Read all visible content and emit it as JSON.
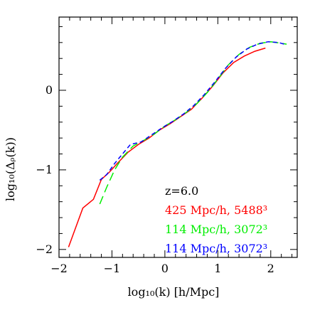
{
  "chart_data": {
    "type": "line",
    "xlabel": "log₁₀(k) [h/Mpc]",
    "ylabel": "log₁₀(Δᵨ(k))",
    "xlim": [
      -2,
      2.5
    ],
    "ylim": [
      -2.1,
      0.92
    ],
    "x_ticks": [
      -2,
      -1,
      0,
      1,
      2
    ],
    "x_tick_labels": [
      "−2",
      "−1",
      "0",
      "1",
      "2"
    ],
    "y_ticks": [
      -2,
      -1,
      0
    ],
    "y_tick_labels": [
      "−2",
      "−1",
      "0"
    ],
    "x_minor_step": 0.2,
    "y_minor_step": 0.2,
    "grid": false,
    "legend_position": "bottom-right",
    "annotation": "z=6.0",
    "series": [
      {
        "name": "425 Mpc/h, 5488³",
        "color": "#ff0000",
        "dash": "solid",
        "points": [
          [
            -1.82,
            -1.97
          ],
          [
            -1.55,
            -1.48
          ],
          [
            -1.35,
            -1.37
          ],
          [
            -1.2,
            -1.12
          ],
          [
            -1.05,
            -1.03
          ],
          [
            -0.9,
            -0.92
          ],
          [
            -0.7,
            -0.78
          ],
          [
            -0.5,
            -0.68
          ],
          [
            -0.3,
            -0.6
          ],
          [
            -0.1,
            -0.5
          ],
          [
            0.1,
            -0.42
          ],
          [
            0.3,
            -0.33
          ],
          [
            0.5,
            -0.24
          ],
          [
            0.7,
            -0.1
          ],
          [
            0.9,
            0.05
          ],
          [
            1.1,
            0.22
          ],
          [
            1.3,
            0.35
          ],
          [
            1.5,
            0.43
          ],
          [
            1.7,
            0.49
          ],
          [
            1.9,
            0.53
          ]
        ]
      },
      {
        "name": "114 Mpc/h, 3072³",
        "color": "#00ee00",
        "dash": "long",
        "points": [
          [
            -1.23,
            -1.43
          ],
          [
            -1.1,
            -1.22
          ],
          [
            -0.95,
            -1.0
          ],
          [
            -0.8,
            -0.84
          ],
          [
            -0.6,
            -0.7
          ],
          [
            -0.4,
            -0.63
          ],
          [
            -0.2,
            -0.55
          ],
          [
            0.0,
            -0.45
          ],
          [
            0.2,
            -0.37
          ],
          [
            0.4,
            -0.28
          ],
          [
            0.6,
            -0.17
          ],
          [
            0.8,
            -0.03
          ],
          [
            1.0,
            0.14
          ],
          [
            1.2,
            0.32
          ],
          [
            1.4,
            0.45
          ],
          [
            1.6,
            0.54
          ],
          [
            1.8,
            0.59
          ],
          [
            2.0,
            0.61
          ],
          [
            2.2,
            0.59
          ],
          [
            2.3,
            0.58
          ]
        ]
      },
      {
        "name": "114 Mpc/h, 3072³",
        "color": "#0000ff",
        "dash": "short",
        "points": [
          [
            -1.23,
            -1.13
          ],
          [
            -1.1,
            -1.06
          ],
          [
            -0.95,
            -0.92
          ],
          [
            -0.8,
            -0.8
          ],
          [
            -0.65,
            -0.68
          ],
          [
            -0.45,
            -0.65
          ],
          [
            -0.25,
            -0.56
          ],
          [
            -0.05,
            -0.47
          ],
          [
            0.15,
            -0.39
          ],
          [
            0.35,
            -0.3
          ],
          [
            0.55,
            -0.19
          ],
          [
            0.75,
            -0.05
          ],
          [
            0.95,
            0.11
          ],
          [
            1.15,
            0.28
          ],
          [
            1.35,
            0.42
          ],
          [
            1.55,
            0.52
          ],
          [
            1.75,
            0.58
          ],
          [
            1.95,
            0.61
          ],
          [
            2.15,
            0.6
          ],
          [
            2.25,
            0.58
          ]
        ]
      }
    ]
  }
}
